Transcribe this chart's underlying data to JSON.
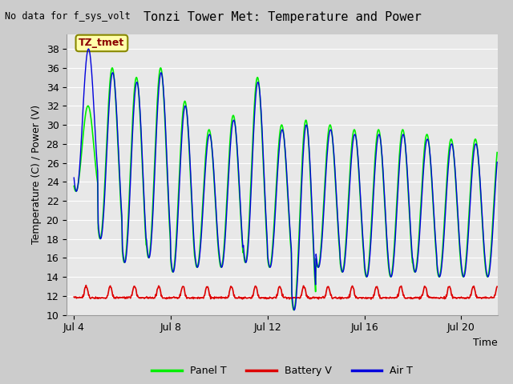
{
  "title": "Tonzi Tower Met: Temperature and Power",
  "top_left_text": "No data for f_sys_volt",
  "ylabel": "Temperature (C) / Power (V)",
  "xlabel": "Time",
  "annotation_label": "TZ_tmet",
  "ylim": [
    10,
    39.5
  ],
  "yticks": [
    10,
    12,
    14,
    16,
    18,
    20,
    22,
    24,
    26,
    28,
    30,
    32,
    34,
    36,
    38
  ],
  "xtick_labels": [
    "Jul 4",
    "Jul 8",
    "Jul 12",
    "Jul 16",
    "Jul 20"
  ],
  "xtick_positions": [
    0,
    4,
    8,
    12,
    16
  ],
  "xmin": -0.3,
  "xmax": 17.5,
  "fig_bg": "#cccccc",
  "plot_bg": "#e8e8e8",
  "grid_color": "#ffffff",
  "panel_t_color": "#00ee00",
  "battery_v_color": "#dd0000",
  "air_t_color": "#0000dd",
  "legend_labels": [
    "Panel T",
    "Battery V",
    "Air T"
  ],
  "legend_colors": [
    "#00ee00",
    "#dd0000",
    "#0000dd"
  ]
}
